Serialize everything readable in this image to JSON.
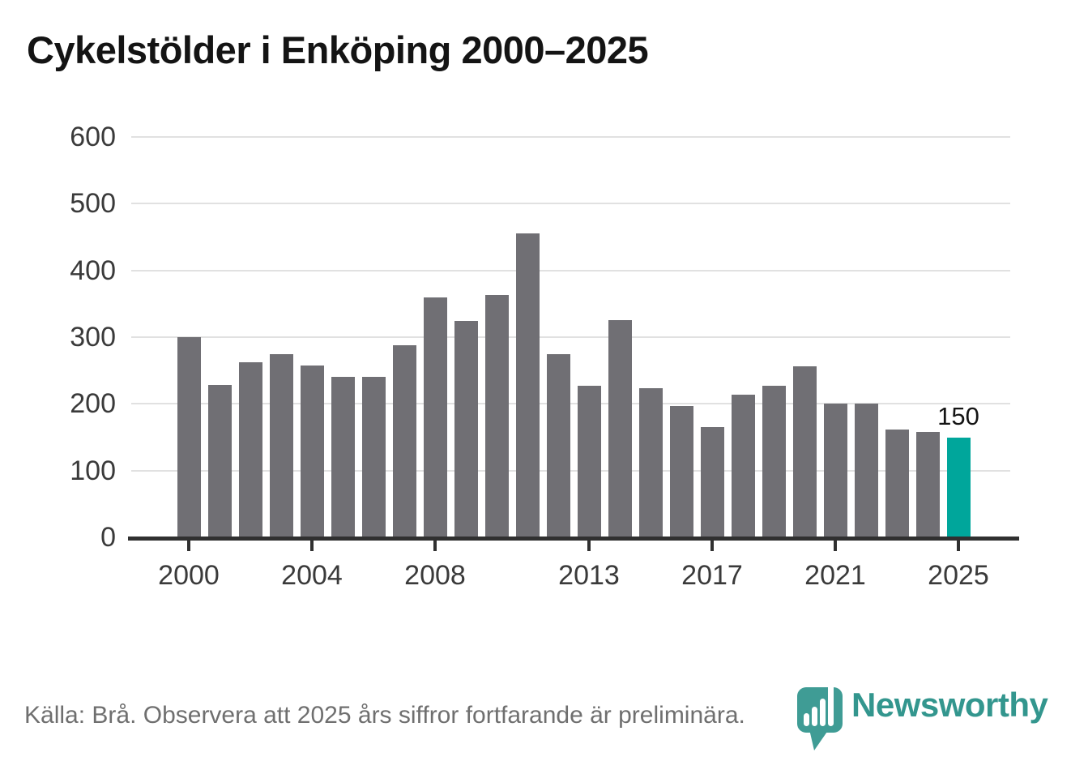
{
  "title": "Cykelstölder i Enköping 2000–2025",
  "footer": {
    "source_note": "Källa: Brå. Observera att 2025 års siffror fortfarande är preliminära."
  },
  "branding": {
    "name": "Newsworthy",
    "logo_icon": "newsworthy-pin-bar-chart-icon"
  },
  "colors": {
    "bar_default": "#706f74",
    "bar_highlight": "#00a69b",
    "brand_teal": "#33968e",
    "logo_teal": "#3f9c95",
    "axis": "#303030",
    "gridline": "#e1e1e1",
    "tick_label": "#3a3a3a",
    "title_text": "#141414",
    "footer_text": "#6f6f6f"
  },
  "chart_data": {
    "type": "bar",
    "title": "Cykelstölder i Enköping 2000–2025",
    "categories": [
      2000,
      2001,
      2002,
      2003,
      2004,
      2005,
      2006,
      2007,
      2008,
      2009,
      2010,
      2011,
      2012,
      2013,
      2014,
      2015,
      2016,
      2017,
      2018,
      2019,
      2020,
      2021,
      2022,
      2023,
      2024,
      2025
    ],
    "values": [
      300,
      228,
      262,
      275,
      258,
      241,
      240,
      288,
      360,
      324,
      363,
      455,
      274,
      227,
      325,
      223,
      197,
      165,
      214,
      227,
      256,
      201,
      201,
      161,
      158,
      150
    ],
    "xlabel": "",
    "ylabel": "",
    "ylim": [
      0,
      600
    ],
    "y_ticks": [
      0,
      100,
      200,
      300,
      400,
      500,
      600
    ],
    "x_tick_labels": [
      "2000",
      "2004",
      "2008",
      "2013",
      "2017",
      "2021",
      "2025"
    ],
    "grid": "horizontal",
    "legend": "none",
    "highlight_category": 2025,
    "annotation": {
      "category": 2025,
      "label": "150"
    }
  }
}
